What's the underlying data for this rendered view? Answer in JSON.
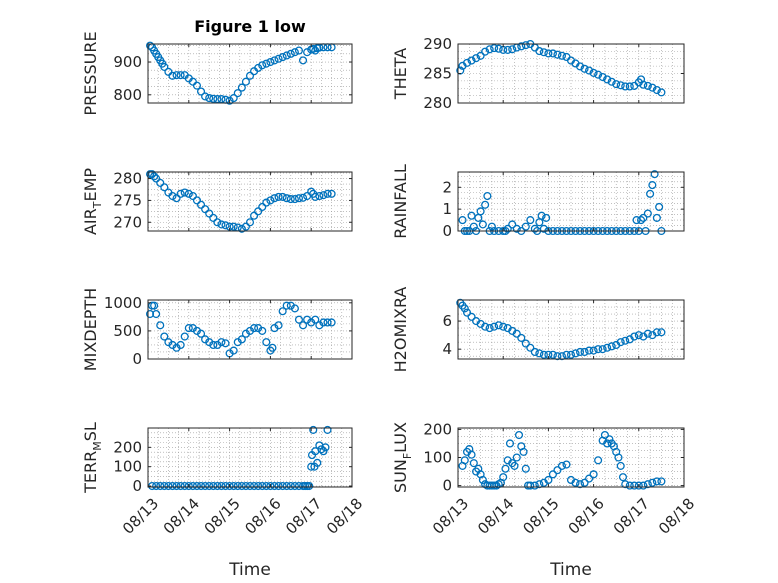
{
  "figure": {
    "background": "#ffffff",
    "marker_color": "#0072BD",
    "grid_color": "#9a9a9a",
    "axis_color": "#262626"
  },
  "chart_data": [
    {
      "type": "scatter",
      "title": "Figure 1 low",
      "ylabel": "PRESSURE",
      "ylim": [
        775,
        955
      ],
      "yticks": [
        800,
        900
      ],
      "xlim": [
        0,
        5
      ],
      "xticks": [
        0,
        1,
        2,
        3,
        4,
        5
      ],
      "xticklabels": [],
      "xlabel": "",
      "grid": "dotted",
      "series": [
        {
          "marker": "circle-open",
          "x": [
            0.05,
            0.1,
            0.15,
            0.2,
            0.25,
            0.3,
            0.35,
            0.4,
            0.5,
            0.6,
            0.7,
            0.8,
            0.9,
            1.0,
            1.1,
            1.2,
            1.3,
            1.4,
            1.5,
            1.6,
            1.7,
            1.8,
            1.9,
            2.0,
            2.1,
            2.2,
            2.3,
            2.4,
            2.5,
            2.6,
            2.7,
            2.8,
            2.9,
            3.0,
            3.1,
            3.2,
            3.3,
            3.4,
            3.5,
            3.6,
            3.7,
            3.8,
            3.9,
            4.0,
            4.05,
            4.1,
            4.15,
            4.2,
            4.3,
            4.4,
            4.5
          ],
          "y": [
            950,
            945,
            935,
            925,
            915,
            905,
            895,
            885,
            870,
            858,
            860,
            860,
            860,
            850,
            840,
            828,
            810,
            795,
            790,
            788,
            787,
            787,
            785,
            782,
            790,
            805,
            822,
            840,
            858,
            872,
            882,
            890,
            895,
            900,
            905,
            910,
            915,
            920,
            925,
            930,
            935,
            905,
            930,
            938,
            940,
            935,
            942,
            944,
            945,
            945,
            945
          ]
        }
      ]
    },
    {
      "type": "scatter",
      "title": "",
      "ylabel": "THETA",
      "ylim": [
        280,
        290
      ],
      "yticks": [
        280,
        285,
        290
      ],
      "xlim": [
        0,
        5
      ],
      "xticks": [
        0,
        1,
        2,
        3,
        4,
        5
      ],
      "xticklabels": [],
      "xlabel": "",
      "grid": "dotted",
      "series": [
        {
          "marker": "circle-open",
          "x": [
            0.05,
            0.1,
            0.2,
            0.3,
            0.4,
            0.5,
            0.6,
            0.7,
            0.8,
            0.9,
            1.0,
            1.1,
            1.2,
            1.3,
            1.4,
            1.5,
            1.6,
            1.7,
            1.8,
            1.9,
            2.0,
            2.1,
            2.2,
            2.3,
            2.4,
            2.5,
            2.6,
            2.7,
            2.8,
            2.9,
            3.0,
            3.1,
            3.2,
            3.3,
            3.4,
            3.5,
            3.6,
            3.7,
            3.8,
            3.9,
            4.0,
            4.05,
            4.1,
            4.2,
            4.3,
            4.4,
            4.5
          ],
          "y": [
            285.5,
            286.3,
            286.8,
            287.2,
            287.6,
            288.0,
            288.7,
            289.1,
            289.3,
            289.2,
            289.0,
            289.0,
            289.1,
            289.4,
            289.6,
            289.8,
            290.0,
            289.4,
            288.8,
            288.6,
            288.4,
            288.4,
            288.2,
            288.0,
            287.8,
            287.2,
            286.7,
            286.2,
            285.8,
            285.5,
            285.1,
            284.8,
            284.4,
            284.0,
            283.6,
            283.2,
            283.0,
            282.8,
            282.8,
            282.9,
            283.5,
            284.0,
            283.1,
            282.9,
            282.6,
            282.2,
            281.8
          ]
        }
      ]
    },
    {
      "type": "scatter",
      "title": "",
      "ylabel": "AIR_TEMP",
      "ylim": [
        268,
        281.5
      ],
      "yticks": [
        270,
        275,
        280
      ],
      "xlim": [
        0,
        5
      ],
      "xticks": [
        0,
        1,
        2,
        3,
        4,
        5
      ],
      "xticklabels": [],
      "xlabel": "",
      "grid": "dotted",
      "series": [
        {
          "marker": "circle-open",
          "x": [
            0.05,
            0.1,
            0.15,
            0.2,
            0.3,
            0.4,
            0.5,
            0.6,
            0.7,
            0.8,
            0.9,
            1.0,
            1.1,
            1.2,
            1.3,
            1.4,
            1.5,
            1.6,
            1.7,
            1.8,
            1.9,
            2.0,
            2.1,
            2.2,
            2.3,
            2.4,
            2.5,
            2.6,
            2.7,
            2.8,
            2.9,
            3.0,
            3.1,
            3.2,
            3.3,
            3.4,
            3.5,
            3.6,
            3.7,
            3.8,
            3.9,
            4.0,
            4.05,
            4.1,
            4.2,
            4.3,
            4.4,
            4.5
          ],
          "y": [
            281.0,
            281.0,
            280.5,
            280.0,
            279.0,
            278.0,
            276.8,
            276.0,
            275.5,
            276.5,
            276.8,
            276.5,
            276.0,
            275.0,
            274.0,
            273.0,
            272.0,
            271.0,
            270.0,
            269.5,
            269.3,
            269.0,
            269.0,
            268.8,
            268.5,
            269.0,
            270.0,
            271.5,
            272.5,
            273.5,
            274.5,
            275.0,
            275.5,
            275.8,
            275.8,
            275.5,
            275.3,
            275.3,
            275.5,
            275.6,
            276.0,
            277.0,
            276.5,
            275.8,
            276.0,
            276.2,
            276.5,
            276.5
          ]
        }
      ]
    },
    {
      "type": "scatter",
      "title": "",
      "ylabel": "RAINFALL",
      "ylim": [
        0,
        2.7
      ],
      "yticks": [
        0,
        1,
        2
      ],
      "xlim": [
        0,
        5
      ],
      "xticks": [
        0,
        1,
        2,
        3,
        4,
        5
      ],
      "xticklabels": [],
      "xlabel": "",
      "grid": "dotted",
      "series": [
        {
          "marker": "circle-open",
          "x": [
            0.1,
            0.15,
            0.2,
            0.25,
            0.3,
            0.35,
            0.4,
            0.45,
            0.5,
            0.55,
            0.6,
            0.65,
            0.7,
            0.75,
            0.8,
            0.9,
            1.0,
            1.05,
            1.1,
            1.2,
            1.3,
            1.4,
            1.5,
            1.6,
            1.7,
            1.75,
            1.8,
            1.85,
            1.9,
            1.95,
            2.0,
            2.1,
            2.2,
            2.3,
            2.4,
            2.5,
            2.6,
            2.7,
            2.8,
            2.9,
            3.0,
            3.1,
            3.2,
            3.3,
            3.4,
            3.5,
            3.6,
            3.7,
            3.8,
            3.9,
            3.95,
            4.0,
            4.05,
            4.1,
            4.15,
            4.2,
            4.25,
            4.3,
            4.35,
            4.4,
            4.45,
            4.5
          ],
          "y": [
            0.5,
            0,
            0,
            0,
            0.7,
            0.2,
            0,
            0.6,
            0.9,
            0.3,
            1.2,
            1.6,
            0,
            0.2,
            0,
            0,
            0,
            0,
            0.1,
            0.3,
            0.1,
            0,
            0.2,
            0.5,
            0.1,
            0,
            0.4,
            0.7,
            0.1,
            0.6,
            0,
            0,
            0,
            0,
            0,
            0,
            0,
            0,
            0,
            0,
            0,
            0,
            0,
            0,
            0,
            0,
            0,
            0,
            0,
            0,
            0.5,
            0,
            0.5,
            0.6,
            0,
            0.8,
            1.7,
            2.1,
            2.6,
            0.6,
            1.1,
            0
          ]
        }
      ]
    },
    {
      "type": "scatter",
      "title": "",
      "ylabel": "MIXDEPTH",
      "ylim": [
        0,
        1050
      ],
      "yticks": [
        0,
        500,
        1000
      ],
      "xlim": [
        0,
        5
      ],
      "xticks": [
        0,
        1,
        2,
        3,
        4,
        5
      ],
      "xticklabels": [],
      "xlabel": "",
      "grid": "dotted",
      "series": [
        {
          "marker": "circle-open",
          "x": [
            0.05,
            0.1,
            0.15,
            0.2,
            0.3,
            0.4,
            0.5,
            0.6,
            0.7,
            0.8,
            0.9,
            1.0,
            1.1,
            1.2,
            1.3,
            1.4,
            1.5,
            1.6,
            1.7,
            1.8,
            1.9,
            2.0,
            2.1,
            2.2,
            2.3,
            2.4,
            2.5,
            2.6,
            2.7,
            2.8,
            2.9,
            3.0,
            3.05,
            3.1,
            3.2,
            3.3,
            3.4,
            3.5,
            3.6,
            3.7,
            3.8,
            3.9,
            4.0,
            4.1,
            4.2,
            4.3,
            4.4,
            4.5
          ],
          "y": [
            800,
            950,
            950,
            800,
            600,
            400,
            300,
            250,
            200,
            250,
            400,
            550,
            550,
            500,
            450,
            350,
            300,
            250,
            250,
            300,
            280,
            100,
            150,
            300,
            350,
            450,
            500,
            550,
            550,
            500,
            300,
            150,
            200,
            550,
            600,
            850,
            950,
            950,
            900,
            700,
            600,
            700,
            650,
            700,
            600,
            650,
            650,
            650
          ]
        }
      ]
    },
    {
      "type": "scatter",
      "title": "",
      "ylabel": "H2OMIXRA",
      "ylim": [
        3.3,
        7.5
      ],
      "yticks": [
        4,
        6
      ],
      "xlim": [
        0,
        5
      ],
      "xticks": [
        0,
        1,
        2,
        3,
        4,
        5
      ],
      "xticklabels": [],
      "xlabel": "",
      "grid": "dotted",
      "series": [
        {
          "marker": "circle-open",
          "x": [
            0.05,
            0.1,
            0.15,
            0.2,
            0.3,
            0.4,
            0.5,
            0.6,
            0.7,
            0.8,
            0.9,
            1.0,
            1.1,
            1.2,
            1.3,
            1.4,
            1.5,
            1.6,
            1.7,
            1.8,
            1.9,
            2.0,
            2.1,
            2.2,
            2.3,
            2.4,
            2.5,
            2.6,
            2.7,
            2.8,
            2.9,
            3.0,
            3.1,
            3.2,
            3.3,
            3.4,
            3.5,
            3.6,
            3.7,
            3.8,
            3.9,
            4.0,
            4.1,
            4.2,
            4.3,
            4.4,
            4.5
          ],
          "y": [
            7.3,
            7.1,
            6.9,
            6.6,
            6.3,
            6.0,
            5.8,
            5.6,
            5.5,
            5.6,
            5.7,
            5.6,
            5.5,
            5.3,
            5.1,
            4.8,
            4.4,
            4.1,
            3.8,
            3.7,
            3.6,
            3.6,
            3.6,
            3.5,
            3.5,
            3.6,
            3.6,
            3.7,
            3.8,
            3.8,
            3.9,
            3.9,
            4.0,
            4.0,
            4.1,
            4.2,
            4.3,
            4.5,
            4.6,
            4.7,
            4.9,
            5.0,
            4.9,
            5.1,
            5.0,
            5.2,
            5.2
          ]
        }
      ]
    },
    {
      "type": "scatter",
      "title": "",
      "ylabel": "TERR_MSL",
      "ylim": [
        -5,
        300
      ],
      "yticks": [
        0,
        100,
        200
      ],
      "xlim": [
        0,
        5
      ],
      "xticks": [
        0,
        1,
        2,
        3,
        4,
        5
      ],
      "xticklabels": [
        "08/13",
        "08/14",
        "08/15",
        "08/16",
        "08/17",
        "08/18"
      ],
      "xlabel": "Time",
      "grid": "dotted",
      "series": [
        {
          "marker": "circle-open",
          "x": [
            0.1,
            0.2,
            0.3,
            0.4,
            0.5,
            0.6,
            0.7,
            0.8,
            0.9,
            1.0,
            1.1,
            1.2,
            1.3,
            1.4,
            1.5,
            1.6,
            1.7,
            1.8,
            1.9,
            2.0,
            2.1,
            2.2,
            2.3,
            2.4,
            2.5,
            2.6,
            2.7,
            2.8,
            2.9,
            3.0,
            3.1,
            3.2,
            3.3,
            3.4,
            3.5,
            3.6,
            3.7,
            3.8,
            3.85,
            3.9,
            3.95,
            4.0,
            4.02,
            4.05,
            4.08,
            4.1,
            4.15,
            4.2,
            4.25,
            4.3,
            4.35,
            4.4
          ],
          "y": [
            0,
            0,
            0,
            0,
            0,
            0,
            0,
            0,
            0,
            0,
            0,
            0,
            0,
            0,
            0,
            0,
            0,
            0,
            0,
            0,
            0,
            0,
            0,
            0,
            0,
            0,
            0,
            0,
            0,
            0,
            0,
            0,
            0,
            0,
            0,
            0,
            0,
            0,
            0,
            0,
            0,
            100,
            160,
            290,
            100,
            180,
            120,
            210,
            190,
            180,
            200,
            290
          ]
        }
      ]
    },
    {
      "type": "scatter",
      "title": "",
      "ylabel": "SUN_FLUX",
      "ylim": [
        -5,
        205
      ],
      "yticks": [
        0,
        100,
        200
      ],
      "xlim": [
        0,
        5
      ],
      "xticks": [
        0,
        1,
        2,
        3,
        4,
        5
      ],
      "xticklabels": [
        "08/13",
        "08/14",
        "08/15",
        "08/16",
        "08/17",
        "08/18"
      ],
      "xlabel": "Time",
      "grid": "dotted",
      "series": [
        {
          "marker": "circle-open",
          "x": [
            0.1,
            0.15,
            0.2,
            0.25,
            0.3,
            0.35,
            0.4,
            0.45,
            0.5,
            0.55,
            0.6,
            0.65,
            0.7,
            0.75,
            0.8,
            0.85,
            0.9,
            0.95,
            1.0,
            1.05,
            1.1,
            1.15,
            1.2,
            1.25,
            1.3,
            1.35,
            1.4,
            1.45,
            1.5,
            1.55,
            1.6,
            1.7,
            1.8,
            1.9,
            2.0,
            2.1,
            2.2,
            2.3,
            2.4,
            2.5,
            2.6,
            2.7,
            2.8,
            2.9,
            3.0,
            3.1,
            3.2,
            3.25,
            3.3,
            3.35,
            3.4,
            3.45,
            3.5,
            3.55,
            3.6,
            3.65,
            3.7,
            3.8,
            3.9,
            4.0,
            4.1,
            4.2,
            4.3,
            4.4,
            4.5
          ],
          "y": [
            70,
            90,
            120,
            130,
            110,
            80,
            50,
            60,
            40,
            20,
            5,
            0,
            0,
            0,
            0,
            0,
            5,
            10,
            30,
            60,
            90,
            150,
            80,
            70,
            100,
            180,
            140,
            120,
            60,
            0,
            0,
            0,
            5,
            10,
            20,
            40,
            55,
            70,
            75,
            20,
            10,
            5,
            10,
            25,
            40,
            90,
            160,
            180,
            150,
            165,
            150,
            140,
            120,
            100,
            70,
            30,
            5,
            0,
            0,
            0,
            0,
            5,
            10,
            15,
            15
          ]
        }
      ]
    }
  ]
}
